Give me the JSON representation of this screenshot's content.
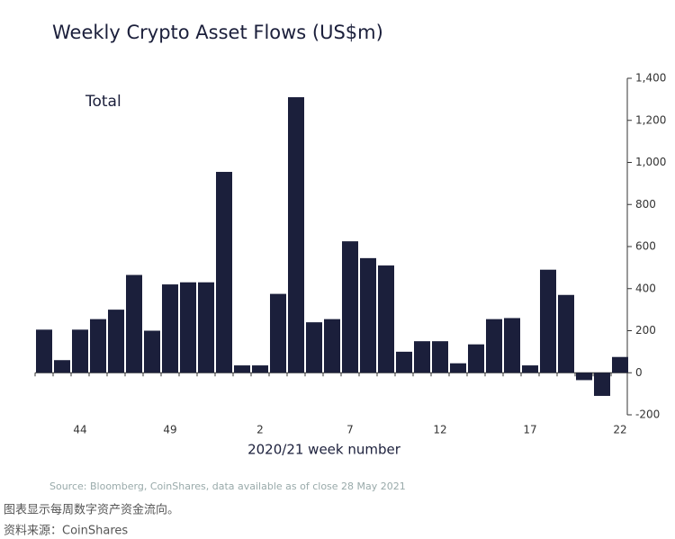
{
  "chart_data": {
    "type": "bar",
    "title": "Weekly Crypto Asset Flows (US$m)",
    "annotation": "Total",
    "x_label": "2020/21 week number",
    "source": "Source: Bloomberg, CoinShares, data available as of close 28 May 2021",
    "categories": [
      null,
      null,
      "44",
      null,
      null,
      null,
      null,
      "49",
      null,
      null,
      null,
      null,
      "2",
      null,
      null,
      null,
      null,
      "7",
      null,
      null,
      null,
      null,
      "12",
      null,
      null,
      null,
      null,
      "17",
      null,
      null,
      null,
      null,
      "22"
    ],
    "values": [
      205,
      60,
      205,
      255,
      300,
      465,
      200,
      420,
      430,
      430,
      955,
      35,
      35,
      375,
      1310,
      240,
      255,
      625,
      545,
      510,
      100,
      150,
      150,
      45,
      135,
      255,
      260,
      35,
      490,
      370,
      -35,
      -110,
      75
    ],
    "color": "#1b1f3b",
    "ylim": [
      -200,
      1400
    ],
    "yticks": [
      -200,
      0,
      200,
      400,
      600,
      800,
      {
        "value": 1000,
        "label": "1,000"
      },
      {
        "value": 1200,
        "label": "1,200"
      },
      {
        "value": 1400,
        "label": "1,400"
      }
    ],
    "y_axis_side": "right",
    "grid": false
  },
  "caption": [
    "图表显示每周数字资产资金流向。",
    "资料来源：CoinShares"
  ]
}
